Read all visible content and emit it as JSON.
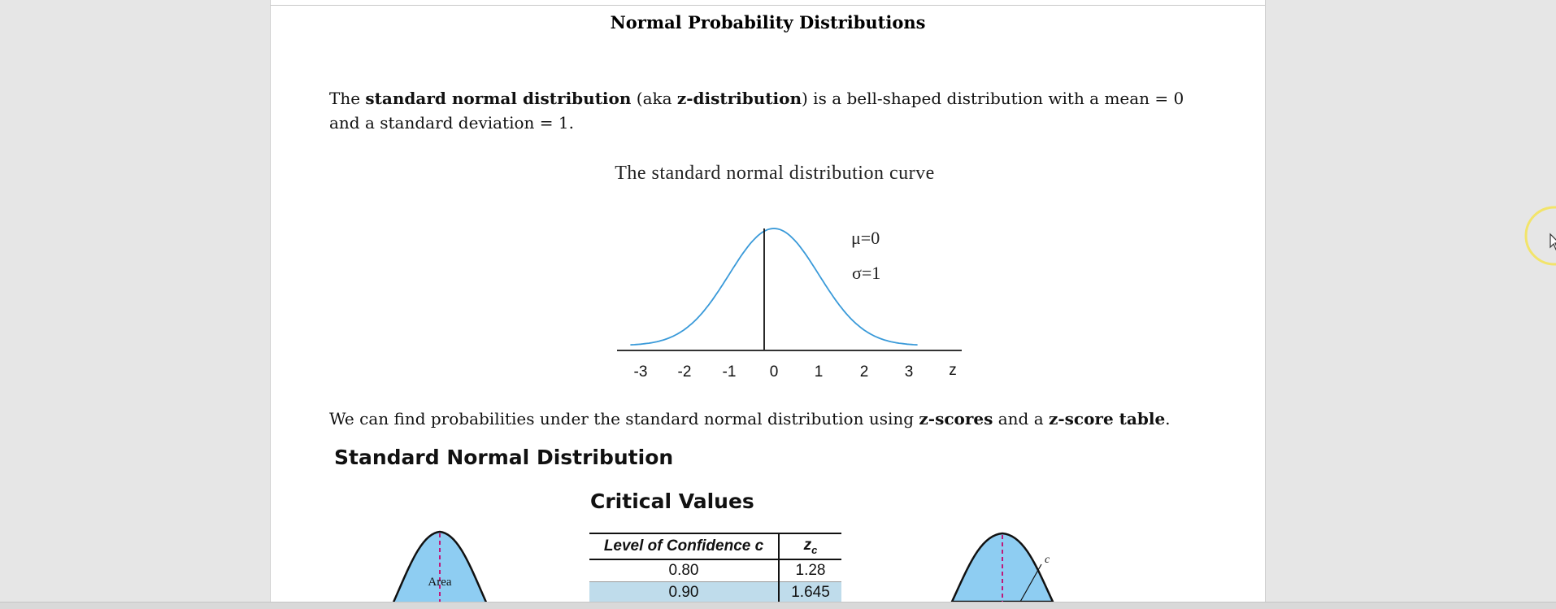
{
  "document": {
    "title": "Normal Probability Distributions",
    "para1": {
      "t1": "The ",
      "b1": "standard normal distribution",
      "t2": " (aka ",
      "b2": "z-distribution",
      "t3": ") is a bell-shaped distribution with a mean = 0 and a standard deviation = 1."
    },
    "para2": {
      "t1": "We can find probabilities under the standard normal distribution using ",
      "b1": "z-scores",
      "t2": " and a ",
      "b2": "z-score table",
      "t3": "."
    }
  },
  "curve_figure": {
    "title": "The standard normal distribution curve",
    "mu_label": "μ=0",
    "sigma_label": "σ=1",
    "axis_label": "z",
    "ticks": [
      "-3",
      "-2",
      "-1",
      "0",
      "1",
      "2",
      "3"
    ],
    "curve_color": "#3a9ad9"
  },
  "snd_heading": "Standard Normal Distribution",
  "critical_values": {
    "heading": "Critical Values",
    "col1_header": "Level of Confidence c",
    "col2_header": "z",
    "col2_sub": "c",
    "rows": [
      {
        "level": "0.80",
        "z": "1.28"
      },
      {
        "level": "0.90",
        "z": "1.645"
      }
    ]
  },
  "bell_left": {
    "label": "Area"
  },
  "bell_right": {
    "label": "c"
  },
  "colors": {
    "bell_fill": "#8ecdf2",
    "table_shade": "#bfdceb"
  }
}
